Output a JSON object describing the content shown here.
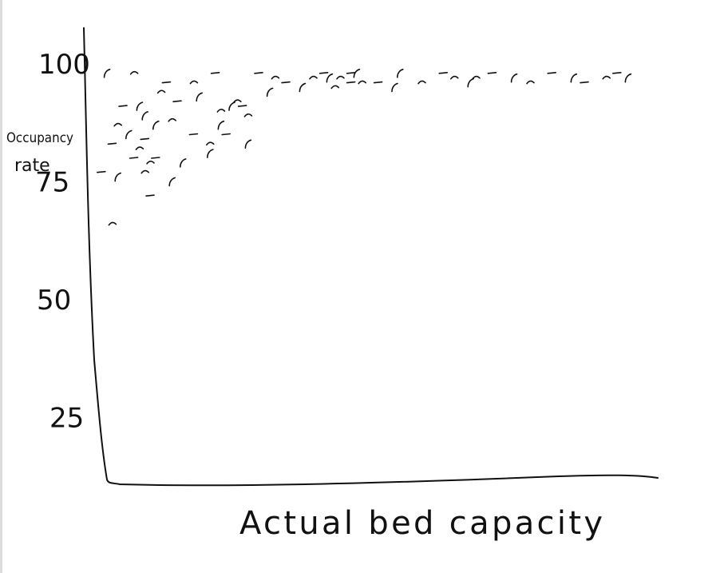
{
  "chart_data": {
    "type": "scatter",
    "title": "",
    "xlabel": "Actual bed capacity",
    "ylabel_lines": [
      "Occupancy",
      "rate"
    ],
    "y_ticks": [
      {
        "value": 100,
        "label": "100"
      },
      {
        "value": 75,
        "label": "75"
      },
      {
        "value": 50,
        "label": "50"
      },
      {
        "value": 25,
        "label": "25"
      }
    ],
    "x_ticks": [],
    "xlim": [
      0,
      100
    ],
    "ylim": [
      0,
      100
    ],
    "grid": false,
    "legend": "none",
    "mark_color": "#111111",
    "points": [
      [
        1,
        77
      ],
      [
        2,
        98
      ],
      [
        3,
        66
      ],
      [
        3,
        83
      ],
      [
        4,
        76
      ],
      [
        4,
        87
      ],
      [
        5,
        91
      ],
      [
        6,
        85
      ],
      [
        7,
        98
      ],
      [
        7,
        80
      ],
      [
        8,
        91
      ],
      [
        9,
        77
      ],
      [
        9,
        84
      ],
      [
        9,
        89
      ],
      [
        10,
        79
      ],
      [
        10,
        72
      ],
      [
        11,
        87
      ],
      [
        12,
        94
      ],
      [
        13,
        96
      ],
      [
        14,
        75
      ],
      [
        14,
        88
      ],
      [
        15,
        92
      ],
      [
        16,
        79
      ],
      [
        18,
        96
      ],
      [
        18,
        85
      ],
      [
        19,
        93
      ],
      [
        21,
        83
      ],
      [
        22,
        98
      ],
      [
        23,
        87
      ],
      [
        23,
        90
      ],
      [
        24,
        85
      ],
      [
        25,
        91
      ],
      [
        26,
        92
      ],
      [
        27,
        91
      ],
      [
        28,
        83
      ],
      [
        28,
        89
      ],
      [
        30,
        98
      ],
      [
        32,
        94
      ],
      [
        33,
        97
      ],
      [
        35,
        96
      ],
      [
        38,
        95
      ],
      [
        40,
        97
      ],
      [
        42,
        98
      ],
      [
        43,
        97
      ],
      [
        45,
        97
      ],
      [
        47,
        98
      ],
      [
        48,
        98
      ],
      [
        49,
        96
      ],
      [
        52,
        96
      ],
      [
        56,
        98
      ],
      [
        60,
        96
      ],
      [
        64,
        98
      ],
      [
        69,
        96
      ],
      [
        70,
        97
      ],
      [
        73,
        98
      ],
      [
        77,
        97
      ],
      [
        80,
        96
      ],
      [
        84,
        98
      ],
      [
        88,
        97
      ],
      [
        94,
        97
      ],
      [
        96,
        98
      ],
      [
        98,
        97
      ],
      [
        8,
        82
      ],
      [
        11,
        80
      ],
      [
        21,
        81
      ],
      [
        44,
        95
      ],
      [
        47,
        96
      ],
      [
        55,
        95
      ],
      [
        66,
        97
      ],
      [
        90,
        96
      ]
    ]
  }
}
